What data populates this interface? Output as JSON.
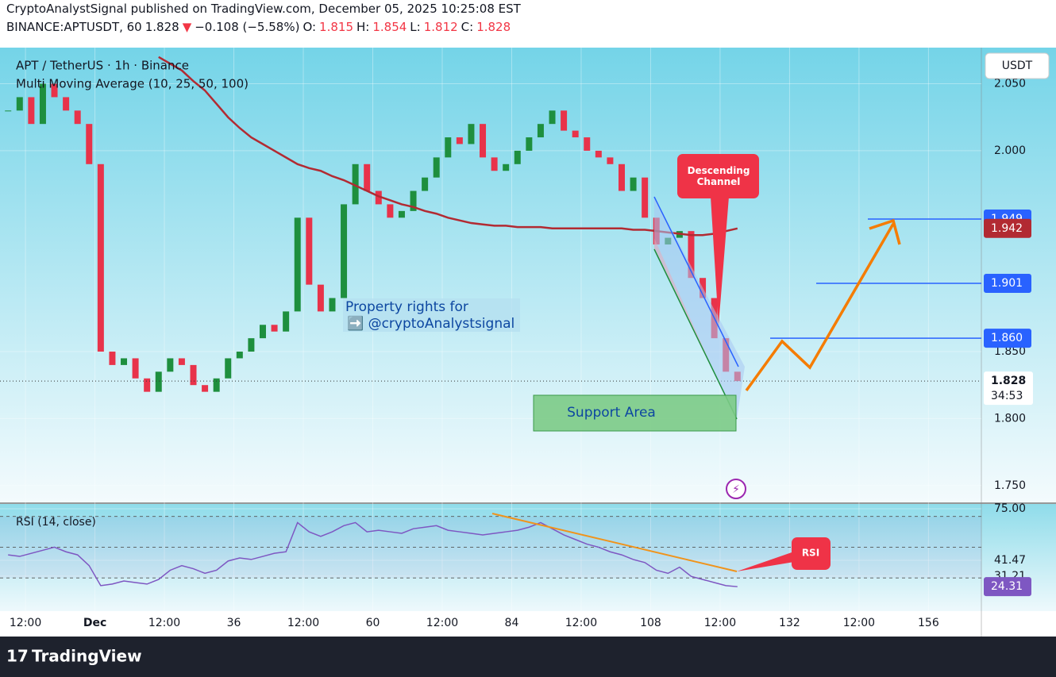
{
  "header": {
    "published": "CryptoAnalystSignal published on TradingView.com, December 05, 2025 10:25:08 EST",
    "quote": [
      {
        "text": "BINANCE:APTUSDT, 60",
        "color": "#131722"
      },
      {
        "text": "1.828",
        "color": "#131722"
      },
      {
        "text": "▼",
        "color": "#f23645"
      },
      {
        "text": "−0.108 (−5.58%)",
        "color": "#131722"
      },
      {
        "text": "O:",
        "color": "#131722"
      },
      {
        "text": "1.815",
        "color": "#f23645"
      },
      {
        "text": "H:",
        "color": "#131722"
      },
      {
        "text": "1.854",
        "color": "#f23645"
      },
      {
        "text": "L:",
        "color": "#131722"
      },
      {
        "text": "1.812",
        "color": "#f23645"
      },
      {
        "text": "C:",
        "color": "#131722"
      },
      {
        "text": "1.828",
        "color": "#f23645"
      }
    ]
  },
  "footer": {
    "brand": "TradingView"
  },
  "xlim": [
    -4.4,
    165
  ],
  "xticks": [
    {
      "value": 0,
      "label": "12:00"
    },
    {
      "value": 12,
      "label": "Dec"
    },
    {
      "value": 24,
      "label": "12:00"
    },
    36,
    {
      "value": 48,
      "label": "12:00"
    },
    60,
    {
      "value": 72,
      "label": "12:00"
    },
    84,
    {
      "value": 96,
      "label": "12:00"
    },
    108,
    {
      "value": 120,
      "label": "12:00"
    },
    132,
    {
      "value": 144,
      "label": "12:00"
    },
    156
  ],
  "x": [
    -3,
    -1,
    1,
    3,
    5,
    7,
    9,
    11,
    13,
    15,
    17,
    19,
    21,
    23,
    25,
    27,
    29,
    31,
    33,
    35,
    37,
    39,
    41,
    43,
    45,
    47,
    49,
    51,
    53,
    55,
    57,
    59,
    61,
    63,
    65,
    67,
    69,
    71,
    73,
    75,
    77,
    79,
    81,
    83,
    85,
    87,
    89,
    91,
    93,
    95,
    97,
    99,
    101,
    103,
    105,
    107,
    109,
    111,
    113,
    115,
    117,
    119,
    121,
    123
  ],
  "chart_data": [
    {
      "type": "candlestick",
      "title": "APT / TetherUS · 1h · Binance",
      "subtitle": "Multi Moving Average (10, 25, 50, 100)",
      "unit": "USDT",
      "up_color": "#1e8f3e",
      "down_color": "#e8334a",
      "ma_color": "#b22a32",
      "close": [
        2.03,
        2.04,
        2.02,
        2.05,
        2.04,
        2.03,
        2.02,
        1.99,
        1.85,
        1.84,
        1.845,
        1.83,
        1.82,
        1.835,
        1.845,
        1.84,
        1.825,
        1.82,
        1.83,
        1.845,
        1.85,
        1.86,
        1.87,
        1.865,
        1.88,
        1.95,
        1.9,
        1.88,
        1.89,
        1.96,
        1.99,
        1.97,
        1.96,
        1.95,
        1.955,
        1.97,
        1.98,
        1.995,
        2.01,
        2.005,
        2.02,
        1.995,
        1.985,
        1.99,
        2.0,
        2.01,
        2.02,
        2.03,
        2.015,
        2.01,
        2.0,
        1.995,
        1.99,
        1.97,
        1.98,
        1.95,
        1.93,
        1.935,
        1.94,
        1.905,
        1.89,
        1.86,
        1.835,
        1.828
      ],
      "ma": [
        null,
        null,
        null,
        null,
        null,
        null,
        null,
        null,
        null,
        null,
        null,
        null,
        null,
        2.07,
        2.065,
        2.06,
        2.052,
        2.045,
        2.035,
        2.025,
        2.017,
        2.01,
        2.005,
        2.0,
        1.995,
        1.99,
        1.987,
        1.985,
        1.981,
        1.978,
        1.974,
        1.97,
        1.966,
        1.963,
        1.96,
        1.958,
        1.955,
        1.953,
        1.95,
        1.948,
        1.946,
        1.945,
        1.944,
        1.944,
        1.943,
        1.943,
        1.943,
        1.942,
        1.942,
        1.942,
        1.942,
        1.942,
        1.942,
        1.942,
        1.941,
        1.941,
        1.94,
        1.939,
        1.938,
        1.937,
        1.937,
        1.938,
        1.94,
        1.942
      ],
      "ylim": [
        1.738,
        2.077
      ],
      "yticks": [
        {
          "value": 1.75,
          "label": "1.750"
        },
        {
          "value": 1.8,
          "label": "1.800"
        },
        {
          "value": 1.85,
          "label": "1.850"
        },
        {
          "value": 2.0,
          "label": "2.000"
        },
        {
          "value": 2.05,
          "label": "2.050"
        }
      ],
      "levels": [
        {
          "value": 1.949,
          "label": "1.949",
          "color": "#2962ff"
        },
        {
          "value": 1.901,
          "label": "1.901",
          "color": "#2962ff"
        },
        {
          "value": 1.86,
          "label": "1.860",
          "color": "#2962ff"
        }
      ],
      "ma_label": {
        "value": 1.942,
        "label": "1.942"
      },
      "countdown": "34:53",
      "annotations": {
        "channel": "Descending Channel",
        "support": "Support Area",
        "rights": "Property rights for",
        "handle": "➡️ @cryptoAnalystsignal"
      }
    },
    {
      "type": "line",
      "title": "RSI (14, close)",
      "color": "#7e57c2",
      "values": [
        45,
        44,
        46,
        48,
        50,
        47,
        45,
        38,
        25,
        26,
        28,
        27,
        26,
        29,
        35,
        38,
        36,
        33,
        35,
        41,
        43,
        42,
        44,
        46,
        47,
        66,
        60,
        57,
        60,
        64,
        66,
        60,
        61,
        60,
        59,
        62,
        63,
        64,
        61,
        60,
        59,
        58,
        59,
        60,
        61,
        63,
        66,
        62,
        58,
        55,
        52,
        50,
        47,
        45,
        42,
        40,
        35,
        33,
        37,
        31,
        29,
        27,
        25,
        24.31
      ],
      "ylim": [
        8.4,
        78.1
      ],
      "yticks": [
        {
          "value": 75,
          "label": "75.00"
        },
        {
          "value": 41.47,
          "label": "41.47"
        },
        {
          "value": 31.21,
          "label": "31.21"
        }
      ],
      "bands": [
        30,
        50,
        70
      ],
      "annotation": "RSI"
    }
  ]
}
